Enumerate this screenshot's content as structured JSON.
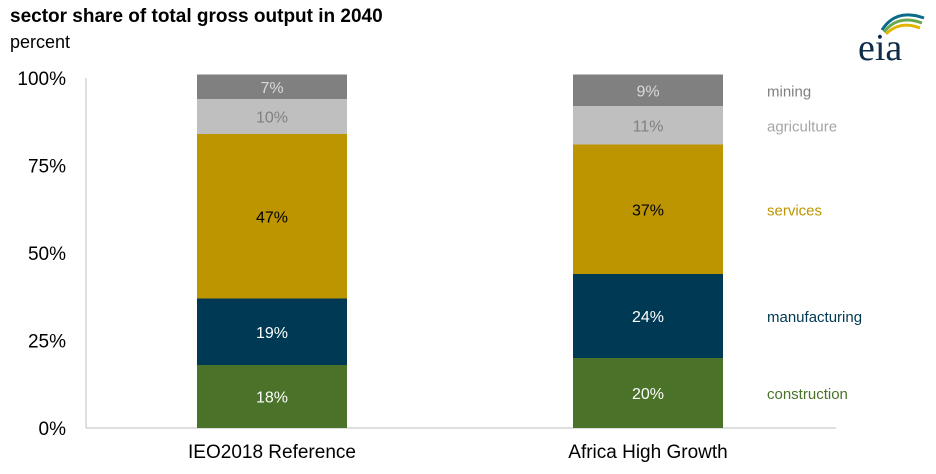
{
  "header": {
    "title": "sector share of total gross output in 2040",
    "subtitle": "percent"
  },
  "logo": {
    "text": "eia"
  },
  "chart_data": {
    "type": "bar",
    "stacked": true,
    "categories": [
      "IEO2018 Reference",
      "Africa High Growth"
    ],
    "series": [
      {
        "name": "construction",
        "values": [
          18,
          20
        ],
        "labels": [
          "18%",
          "20%"
        ],
        "color": "#4a7229",
        "label_color": "#ffffff"
      },
      {
        "name": "manufacturing",
        "values": [
          19,
          24
        ],
        "labels": [
          "19%",
          "24%"
        ],
        "color": "#003953",
        "label_color": "#ffffff"
      },
      {
        "name": "services",
        "values": [
          47,
          37
        ],
        "labels": [
          "47%",
          "37%"
        ],
        "color": "#bd9500",
        "label_color": "#000000"
      },
      {
        "name": "agriculture",
        "values": [
          10,
          11
        ],
        "labels": [
          "10%",
          "11%"
        ],
        "color": "#bfbfbf",
        "label_color": "#808080"
      },
      {
        "name": "mining",
        "values": [
          7,
          9
        ],
        "labels": [
          "7%",
          "9%"
        ],
        "color": "#808080",
        "label_color": "#d9d9d9"
      }
    ],
    "legend_colors": [
      "#4a7229",
      "#003953",
      "#bd9500",
      "#a6a6a6",
      "#808080"
    ],
    "y_ticks": [
      "0%",
      "25%",
      "50%",
      "75%",
      "100%"
    ],
    "ylim": [
      0,
      100
    ],
    "legend": "right, inline labels"
  }
}
